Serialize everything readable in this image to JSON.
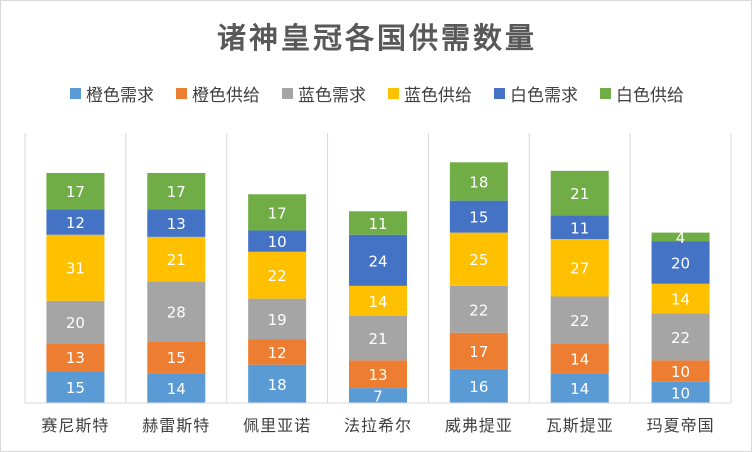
{
  "chart_data": {
    "type": "bar",
    "stacked": true,
    "title": "诸神皇冠各国供需数量",
    "categories": [
      "赛尼斯特",
      "赫雷斯特",
      "佩里亚诺",
      "法拉希尔",
      "威弗提亚",
      "瓦斯提亚",
      "玛夏帝国"
    ],
    "series": [
      {
        "name": "橙色需求",
        "color": "#5b9bd5",
        "values": [
          15,
          14,
          18,
          7,
          16,
          14,
          10
        ]
      },
      {
        "name": "橙色供给",
        "color": "#ed7d31",
        "values": [
          13,
          15,
          12,
          13,
          17,
          14,
          10
        ]
      },
      {
        "name": "蓝色需求",
        "color": "#a5a5a5",
        "values": [
          20,
          28,
          19,
          21,
          22,
          22,
          22
        ]
      },
      {
        "name": "蓝色供给",
        "color": "#ffc000",
        "values": [
          31,
          21,
          22,
          14,
          25,
          27,
          14
        ]
      },
      {
        "name": "白色需求",
        "color": "#4472c4",
        "values": [
          12,
          13,
          10,
          24,
          15,
          11,
          20
        ]
      },
      {
        "name": "白色供给",
        "color": "#70ad47",
        "values": [
          17,
          17,
          17,
          11,
          18,
          21,
          4
        ]
      }
    ],
    "legend_position": "top",
    "grid": false,
    "xlabel": "",
    "ylabel": ""
  }
}
